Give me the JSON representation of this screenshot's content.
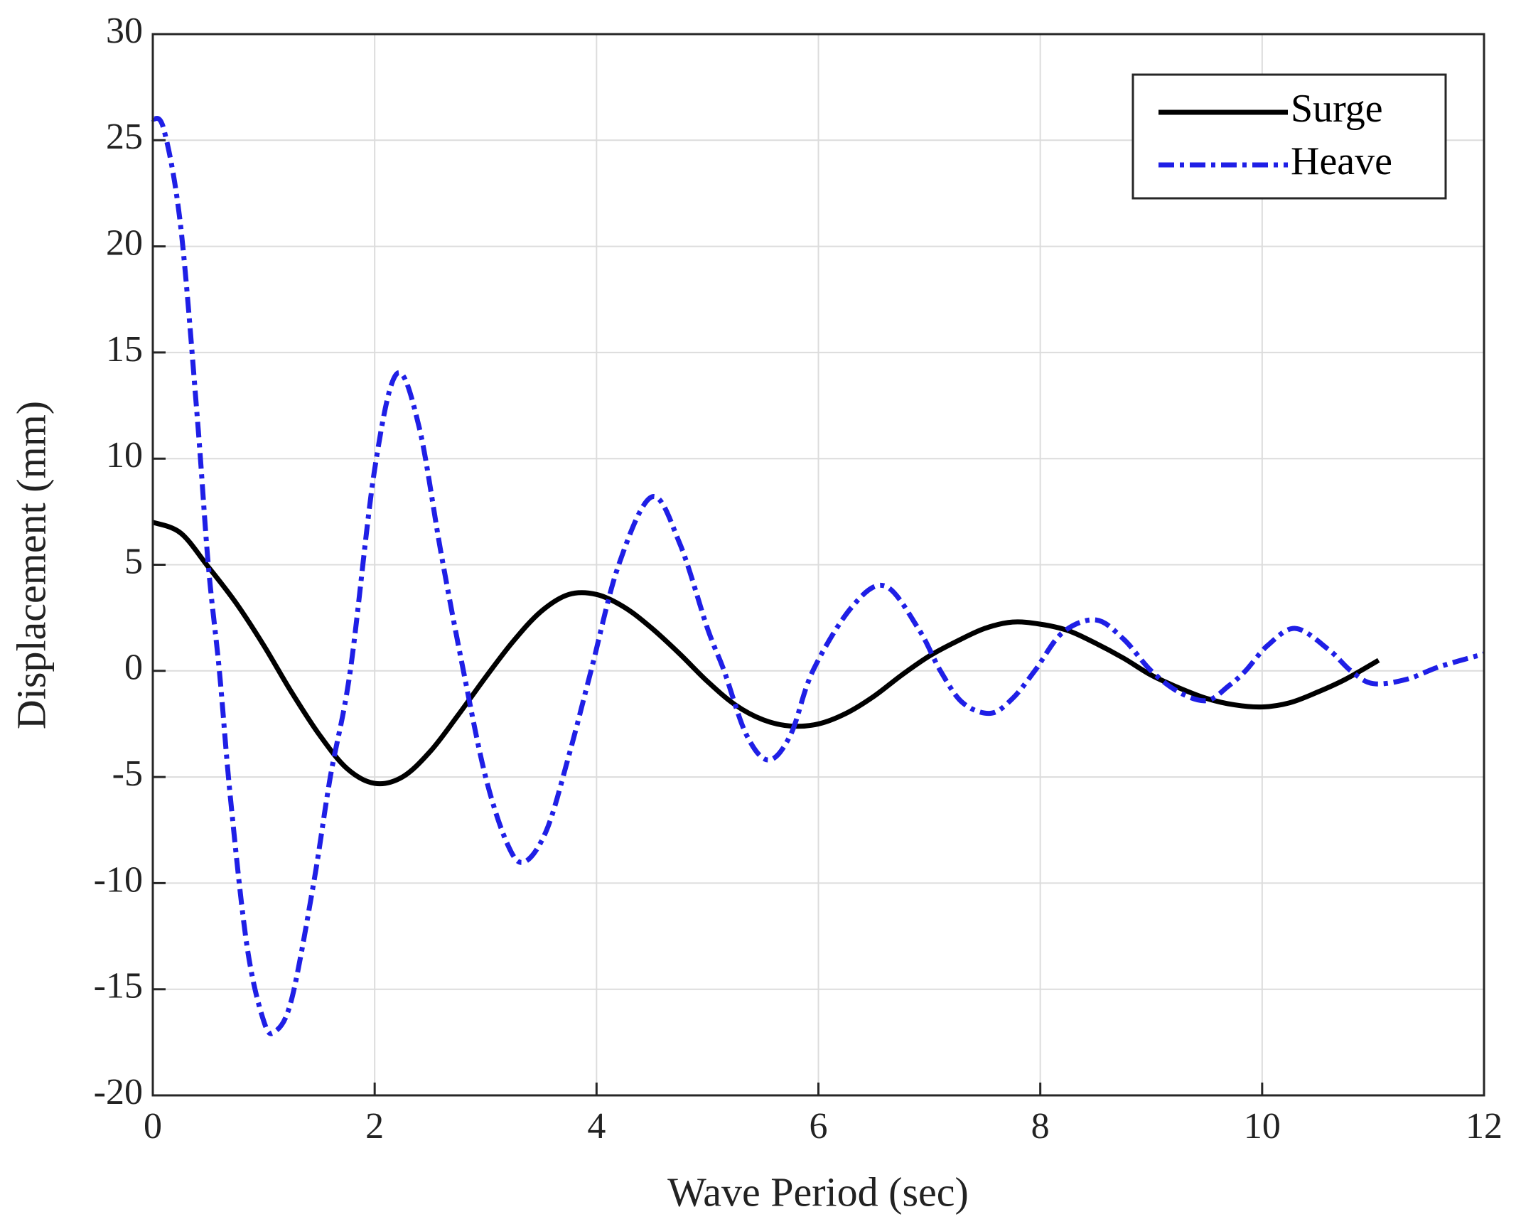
{
  "chart_data": {
    "type": "line",
    "xlabel": "Wave Period (sec)",
    "ylabel": "Displacement (mm)",
    "xlim": [
      0,
      12
    ],
    "xticks": [
      0,
      2,
      4,
      6,
      8,
      10,
      12
    ],
    "ylim": [
      -20,
      30
    ],
    "yticks": [
      -20,
      -15,
      -10,
      -5,
      0,
      5,
      10,
      15,
      20,
      25,
      30
    ],
    "grid": true,
    "legend": "upper right",
    "series": [
      {
        "name": "Surge",
        "color": "#000000",
        "linestyle": "solid",
        "x": [
          0,
          0.25,
          0.5,
          0.75,
          1.0,
          1.25,
          1.5,
          1.75,
          2.0,
          2.25,
          2.5,
          2.75,
          3.0,
          3.25,
          3.5,
          3.75,
          4.0,
          4.25,
          4.5,
          4.75,
          5.0,
          5.25,
          5.5,
          5.75,
          6.0,
          6.25,
          6.5,
          6.75,
          7.0,
          7.25,
          7.5,
          7.75,
          8.0,
          8.25,
          8.5,
          8.75,
          9.0,
          9.25,
          9.5,
          9.75,
          10.0,
          10.25,
          10.5,
          10.75,
          11.05
        ],
        "values": [
          7,
          6.5,
          4.9,
          3.2,
          1.2,
          -1.0,
          -3.0,
          -4.6,
          -5.3,
          -5.0,
          -3.8,
          -2.1,
          -0.3,
          1.4,
          2.8,
          3.6,
          3.6,
          3.0,
          2.0,
          0.8,
          -0.5,
          -1.6,
          -2.3,
          -2.6,
          -2.5,
          -2.0,
          -1.2,
          -0.2,
          0.7,
          1.4,
          2.0,
          2.3,
          2.2,
          1.9,
          1.3,
          0.6,
          -0.2,
          -0.8,
          -1.3,
          -1.6,
          -1.7,
          -1.5,
          -1.0,
          -0.4,
          0.5
        ]
      },
      {
        "name": "Heave",
        "color": "#1f1fe6",
        "linestyle": "dashdot",
        "x": [
          0,
          0.1,
          0.25,
          0.4,
          0.5,
          0.6,
          0.7,
          0.85,
          1.0,
          1.1,
          1.25,
          1.45,
          1.6,
          1.78,
          2.0,
          2.2,
          2.4,
          2.6,
          2.8,
          3.0,
          3.2,
          3.35,
          3.55,
          3.75,
          3.95,
          4.2,
          4.5,
          4.75,
          5.0,
          5.15,
          5.35,
          5.55,
          5.75,
          5.95,
          6.3,
          6.6,
          6.9,
          7.1,
          7.3,
          7.55,
          7.75,
          7.95,
          8.2,
          8.5,
          8.75,
          9.0,
          9.25,
          9.5,
          9.7,
          9.85,
          10.05,
          10.3,
          10.6,
          10.8,
          11.0,
          11.3,
          11.6,
          12.0
        ],
        "values": [
          26,
          25.5,
          21,
          12,
          5,
          0,
          -6,
          -13,
          -16.5,
          -17,
          -15.5,
          -10,
          -5,
          0,
          9.5,
          14,
          11.5,
          5.5,
          0,
          -5,
          -8.2,
          -9,
          -7.5,
          -4,
          0,
          5,
          8.2,
          6,
          2,
          0,
          -3,
          -4.2,
          -3,
          0,
          3,
          4,
          2,
          0,
          -1.5,
          -2,
          -1.3,
          0,
          1.8,
          2.4,
          1.5,
          0,
          -1,
          -1.4,
          -0.7,
          0,
          1.2,
          2,
          1,
          0,
          -0.6,
          -0.4,
          0.2,
          0.8
        ]
      }
    ]
  }
}
